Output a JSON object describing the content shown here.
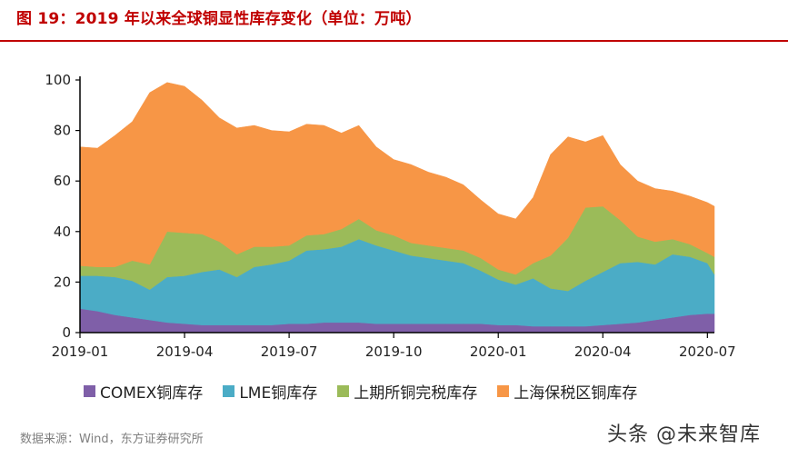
{
  "title": "图 19：2019 年以来全球铜显性库存变化（单位：万吨）",
  "source": "数据来源：Wind，东方证券研究所",
  "watermark": "头条 @未来智库",
  "chart_data": {
    "type": "area",
    "stacked": true,
    "title": "图 19：2019 年以来全球铜显性库存变化（单位：万吨）",
    "xlabel": "",
    "ylabel": "",
    "ylim": [
      0,
      100
    ],
    "yticks": [
      0,
      20,
      40,
      60,
      80,
      100
    ],
    "xticks": [
      "2019-01",
      "2019-04",
      "2019-07",
      "2019-10",
      "2020-01",
      "2020-04",
      "2020-07"
    ],
    "legend_position": "bottom",
    "grid": false,
    "x_start": "2019-01",
    "x_end": "2020-07",
    "x": [
      0,
      0.5,
      1,
      1.5,
      2,
      2.5,
      3,
      3.5,
      4,
      4.5,
      5,
      5.5,
      6,
      6.5,
      7,
      7.5,
      8,
      8.5,
      9,
      9.5,
      10,
      10.5,
      11,
      11.5,
      12,
      12.5,
      13,
      13.5,
      14,
      14.5,
      15,
      15.5,
      16,
      16.5,
      17,
      17.5,
      18,
      18.2
    ],
    "series": [
      {
        "name": "COMEX铜库存",
        "color": "#7f5fa8",
        "values": [
          9.5,
          8.5,
          7,
          6,
          5,
          4,
          3.5,
          3,
          3,
          3,
          3,
          3,
          3.5,
          3.5,
          4,
          4,
          4,
          3.5,
          3.5,
          3.5,
          3.5,
          3.5,
          3.5,
          3.5,
          3,
          3,
          2.5,
          2.5,
          2.5,
          2.5,
          3,
          3.5,
          4,
          5,
          6,
          7,
          7.5,
          7.5
        ]
      },
      {
        "name": "LME铜库存",
        "color": "#4bacc6",
        "values": [
          13,
          14,
          15,
          14.5,
          12,
          18,
          19,
          21,
          22,
          19,
          23,
          24,
          25,
          29,
          29,
          30,
          33,
          31,
          29,
          27,
          26,
          25,
          24,
          21,
          18,
          16,
          19,
          15,
          14,
          18,
          21,
          24,
          24,
          22,
          25,
          23,
          20,
          15.5
        ]
      },
      {
        "name": "上期所铜完税库存",
        "color": "#9bbb59",
        "values": [
          4,
          3.5,
          4,
          8,
          10,
          18,
          17,
          15,
          11,
          9,
          8,
          7,
          6,
          6,
          6,
          7,
          8,
          6,
          6,
          5,
          5,
          5,
          5,
          5,
          4,
          4,
          6,
          13,
          21,
          29,
          26,
          17,
          10,
          9,
          6,
          5,
          4,
          7
        ]
      },
      {
        "name": "上海保税区铜库存",
        "color": "#f79646",
        "values": [
          47,
          47,
          52,
          55,
          68,
          59,
          58,
          53,
          49,
          50,
          48,
          46,
          45,
          44,
          43,
          38,
          37,
          33,
          30,
          31,
          29,
          28,
          26,
          23,
          22,
          22,
          26,
          40,
          40,
          26,
          28,
          22,
          22,
          21,
          19,
          19,
          20,
          20
        ]
      }
    ]
  }
}
